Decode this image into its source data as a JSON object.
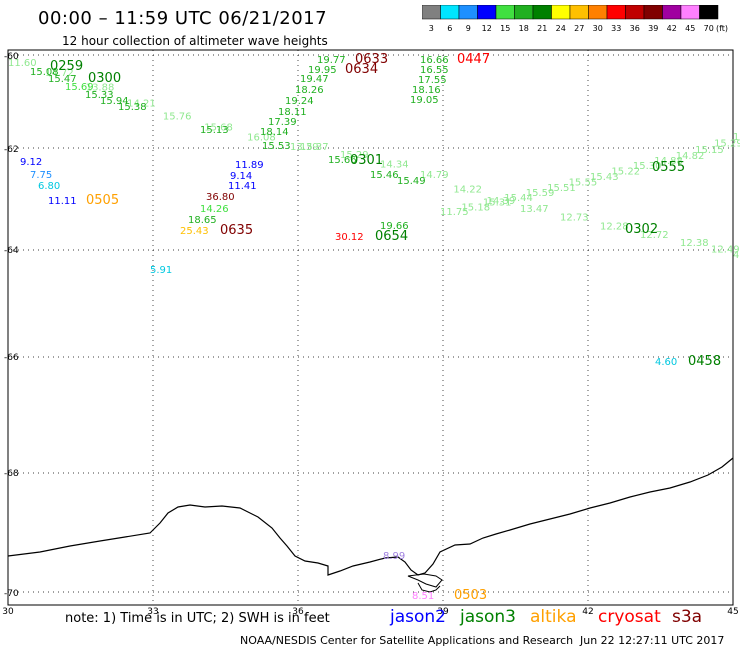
{
  "header": {
    "title": "00:00 – 11:59 UTC 06/21/2017",
    "subtitle": "12 hour collection of altimeter wave heights"
  },
  "scale": {
    "values": [
      "3",
      "6",
      "9",
      "12",
      "15",
      "18",
      "21",
      "24",
      "27",
      "30",
      "33",
      "36",
      "39",
      "42",
      "45",
      "70"
    ],
    "unit": "(ft)",
    "colors": [
      "#808080",
      "#00e5ff",
      "#1e90ff",
      "#0000ff",
      "#40e040",
      "#20b020",
      "#008000",
      "#ffff00",
      "#ffc000",
      "#ff8000",
      "#ff0000",
      "#c00000",
      "#800000",
      "#a000a0",
      "#ff80ff",
      "#000000"
    ]
  },
  "axes": {
    "x_ticks": [
      "30",
      "33",
      "36",
      "39",
      "42",
      "45"
    ],
    "y_ticks": [
      "-60",
      "-62",
      "-64",
      "-66",
      "-68",
      "-70"
    ]
  },
  "tracks": [
    {
      "color": "#90e890",
      "labels": [
        "11.60",
        "14.72",
        "13.88",
        "14.21",
        "15.76",
        "15.68",
        "16.08",
        "13.39"
      ]
    },
    {
      "color": "#90e890",
      "labels": [
        "15.37",
        "15.29",
        "14.34",
        "14.79",
        "14.22",
        "14.39",
        "13.47",
        "12.73",
        "12.28",
        "12.72",
        "12.38",
        "12.49",
        "4.58"
      ]
    },
    {
      "color": "#90e890",
      "labels": [
        "11.75",
        "15.18",
        "15.31",
        "15.44",
        "15.59",
        "15.51",
        "15.55",
        "15.43",
        "15.22",
        "15.30",
        "14.88",
        "14.82",
        "15.15",
        "15.29",
        "15.88"
      ]
    }
  ],
  "labels": [
    {
      "text": "0259",
      "color": "#008000",
      "bold": true
    },
    {
      "text": "0300",
      "color": "#008000",
      "bold": true
    },
    {
      "text": "15.08",
      "color": "#20b020"
    },
    {
      "text": "15.47",
      "color": "#20b020"
    },
    {
      "text": "15.69",
      "color": "#40e040"
    },
    {
      "text": "15.33",
      "color": "#20b020"
    },
    {
      "text": "15.94",
      "color": "#20b020"
    },
    {
      "text": "15.38",
      "color": "#20b020"
    },
    {
      "text": "15.13",
      "color": "#20b020"
    },
    {
      "text": "19.77",
      "color": "#20b020"
    },
    {
      "text": "19.95",
      "color": "#20b020"
    },
    {
      "text": "19.47",
      "color": "#20b020"
    },
    {
      "text": "18.26",
      "color": "#20b020"
    },
    {
      "text": "19.24",
      "color": "#20b020"
    },
    {
      "text": "18.11",
      "color": "#20b020"
    },
    {
      "text": "17.39",
      "color": "#20b020"
    },
    {
      "text": "18.14",
      "color": "#20b020"
    },
    {
      "text": "15.53",
      "color": "#20b020"
    },
    {
      "text": "0633",
      "color": "#800000",
      "bold": true
    },
    {
      "text": "0634",
      "color": "#800000",
      "bold": true
    },
    {
      "text": "16.66",
      "color": "#20b020"
    },
    {
      "text": "16.55",
      "color": "#20b020"
    },
    {
      "text": "17.55",
      "color": "#20b020"
    },
    {
      "text": "18.16",
      "color": "#20b020"
    },
    {
      "text": "19.05",
      "color": "#20b020"
    },
    {
      "text": "0447",
      "color": "#ff0000",
      "bold": true
    },
    {
      "text": "9.12",
      "color": "#0000ff"
    },
    {
      "text": "7.75",
      "color": "#1e90ff"
    },
    {
      "text": "6.80",
      "color": "#00c8e0"
    },
    {
      "text": "11.11",
      "color": "#0000ff"
    },
    {
      "text": "0505",
      "color": "#ffa000",
      "bold": true
    },
    {
      "text": "11.89",
      "color": "#0000ff"
    },
    {
      "text": "9.14",
      "color": "#0000ff"
    },
    {
      "text": "11.41",
      "color": "#0000ff"
    },
    {
      "text": "36.80",
      "color": "#800000"
    },
    {
      "text": "14.26",
      "color": "#40e040"
    },
    {
      "text": "18.65",
      "color": "#20b020"
    },
    {
      "text": "25.43",
      "color": "#ffc000"
    },
    {
      "text": "0635",
      "color": "#800000",
      "bold": true
    },
    {
      "text": "15.66",
      "color": "#20b020"
    },
    {
      "text": "0301",
      "color": "#008000",
      "bold": true
    },
    {
      "text": "15.46",
      "color": "#20b020"
    },
    {
      "text": "15.49",
      "color": "#20b020"
    },
    {
      "text": "30.12",
      "color": "#ff0000"
    },
    {
      "text": "0654",
      "color": "#008000",
      "bold": true
    },
    {
      "text": "19.66",
      "color": "#20b020"
    },
    {
      "text": "0302",
      "color": "#008000",
      "bold": true
    },
    {
      "text": "0555",
      "color": "#008000",
      "bold": true
    },
    {
      "text": "5.91",
      "color": "#00c8e0"
    },
    {
      "text": "4.60",
      "color": "#00c8e0"
    },
    {
      "text": "0458",
      "color": "#008000",
      "bold": true
    },
    {
      "text": "0503",
      "color": "#ffa000",
      "bold": true
    },
    {
      "text": "8.99",
      "color": "#a080e0"
    },
    {
      "text": "8.51",
      "color": "#ff80ff"
    }
  ],
  "footer": {
    "note": "note: 1) Time is in UTC; 2) SWH is in feet",
    "legend": [
      {
        "name": "jason2",
        "color": "#0000ff"
      },
      {
        "name": "jason3",
        "color": "#008000"
      },
      {
        "name": "altika",
        "color": "#ffa000"
      },
      {
        "name": "cryosat",
        "color": "#ff0000"
      },
      {
        "name": "s3a",
        "color": "#800000"
      }
    ],
    "credit": "NOAA/NESDIS Center for Satellite Applications and Research",
    "stamp": "Jun 22 12:27:11 UTC 2017"
  }
}
